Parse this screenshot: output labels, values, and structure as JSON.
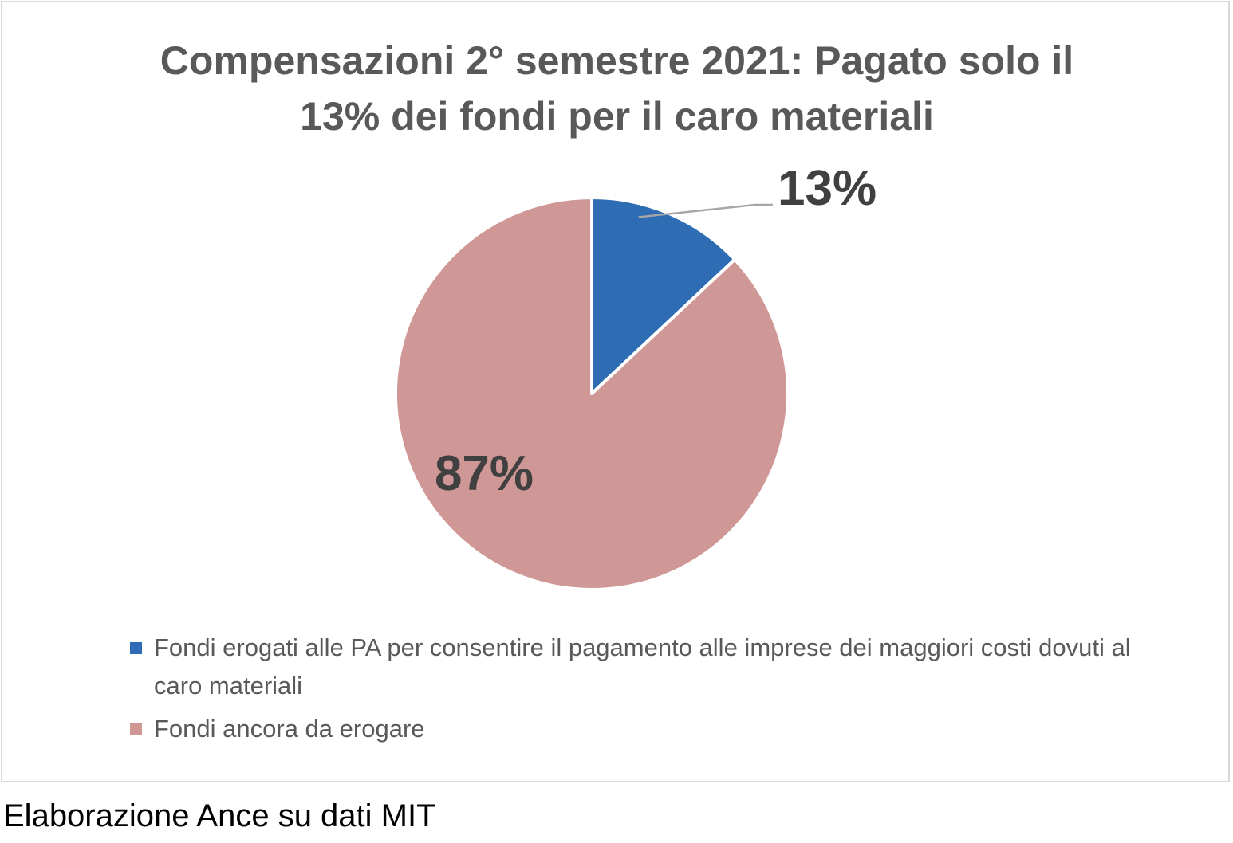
{
  "chart_data": {
    "type": "pie",
    "title_lines": [
      "Compensazioni 2° semestre 2021: Pagato solo il",
      "13% dei fondi per il caro materiali"
    ],
    "slices": [
      {
        "label": "Fondi erogati alle PA per consentire il pagamento alle imprese dei maggiori costi dovuti al caro materiali",
        "value": 13,
        "data_label": "13%",
        "color": "#2e6db4"
      },
      {
        "label": "Fondi ancora da erogare",
        "value": 87,
        "data_label": "87%",
        "color": "#cf9795"
      }
    ],
    "legend_position": "bottom",
    "start_angle": "12 o'clock, clockwise"
  },
  "source_note": "Elaborazione Ance su dati MIT"
}
